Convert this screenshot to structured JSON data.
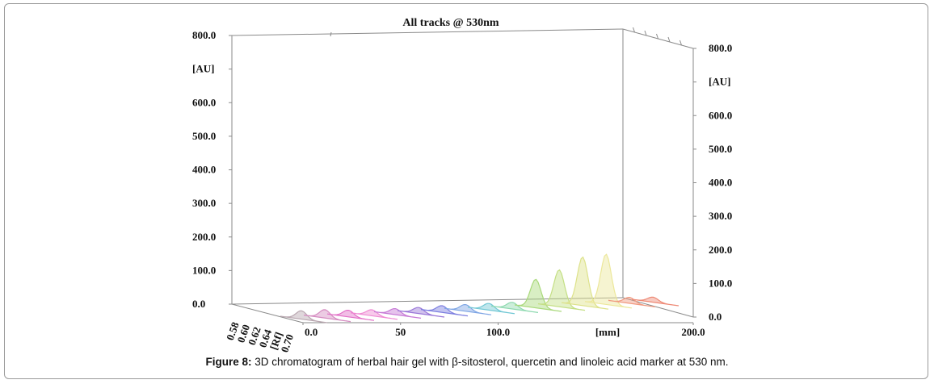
{
  "chart_data": {
    "type": "area",
    "title": "All tracks @ 530nm",
    "left_axis": {
      "unit": "[AU]",
      "ticks": [
        "800.0",
        "600.0",
        "500.0",
        "400.0",
        "300.0",
        "200.0",
        "100.0",
        "0.0"
      ],
      "values": [
        800,
        600,
        500,
        400,
        300,
        200,
        100,
        0
      ]
    },
    "right_axis": {
      "unit": "[AU]",
      "ticks": [
        "800.0",
        "600.0",
        "500.0",
        "400.0",
        "300.0",
        "200.0",
        "100.0",
        "0.0"
      ],
      "values": [
        800,
        600,
        500,
        400,
        300,
        200,
        100,
        0
      ]
    },
    "x_axis": {
      "unit": "[mm]",
      "ticks": [
        "0.0",
        "50",
        "100.0",
        "200.0"
      ],
      "values": [
        0,
        50,
        100,
        200
      ],
      "range": [
        0,
        200
      ]
    },
    "depth_axis": {
      "unit": "[Rf]",
      "ticks": [
        "0.58",
        "0.60",
        "0.62",
        "0.64",
        "0.70"
      ]
    },
    "ylim": [
      0,
      800
    ],
    "series": [
      {
        "color": "#b9a7b0",
        "peak": 25
      },
      {
        "color": "#d58bc0",
        "peak": 25
      },
      {
        "color": "#e36fc7",
        "peak": 20
      },
      {
        "color": "#ef8ad3",
        "peak": 18
      },
      {
        "color": "#c77ad6",
        "peak": 18
      },
      {
        "color": "#9a77d8",
        "peak": 18
      },
      {
        "color": "#7d7fe0",
        "peak": 20
      },
      {
        "color": "#7ea5e4",
        "peak": 20
      },
      {
        "color": "#70c7d4",
        "peak": 20
      },
      {
        "color": "#8ed9b0",
        "peak": 20
      },
      {
        "color": "#a9d97b",
        "peak": 85
      },
      {
        "color": "#c4df84",
        "peak": 110
      },
      {
        "color": "#dde28a",
        "peak": 145
      },
      {
        "color": "#ece79a",
        "peak": 150
      },
      {
        "color": "#f09a80",
        "peak": 18
      },
      {
        "color": "#ee8a76",
        "peak": 15
      }
    ]
  },
  "caption": {
    "label": "Figure 8:",
    "text": " 3D chromatogram of herbal hair gel with β-sitosterol, quercetin and linoleic acid marker at 530 nm."
  }
}
